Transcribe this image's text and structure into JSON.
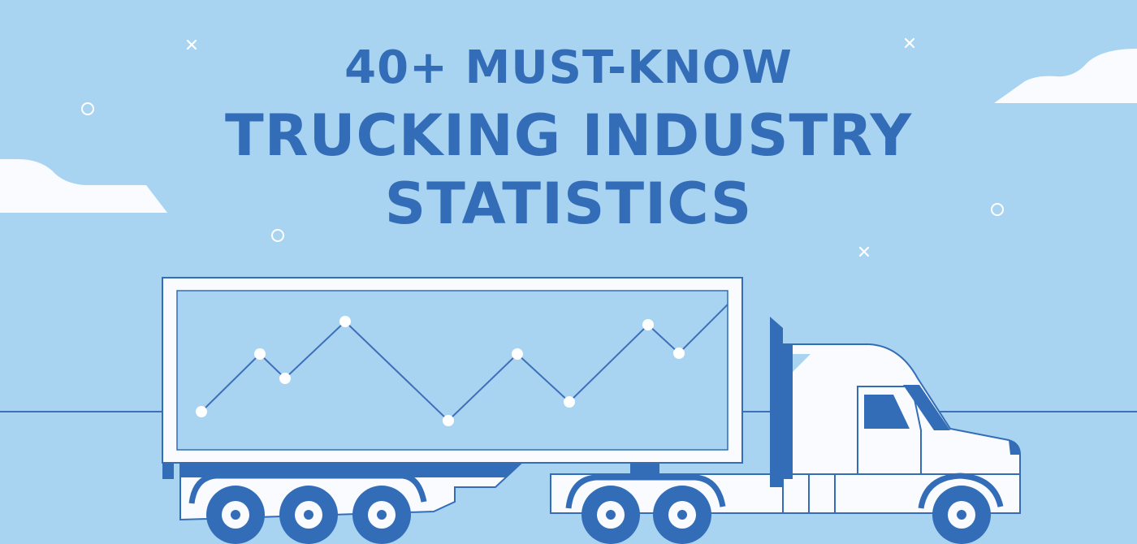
{
  "banner": {
    "title_line1": "40+ MUST-KNOW",
    "title_line2": "TRUCKING INDUSTRY",
    "title_line3": "STATISTICS"
  },
  "colors": {
    "background": "#a8d4f2",
    "primary_blue": "#336db8",
    "white": "#f9fbfe",
    "line": "#3f6fb8"
  },
  "decor": {
    "icons": [
      "cloud-icon",
      "cross-sparkle-icon",
      "circle-sparkle-icon",
      "truck-illustration",
      "line-graph-illustration"
    ]
  }
}
